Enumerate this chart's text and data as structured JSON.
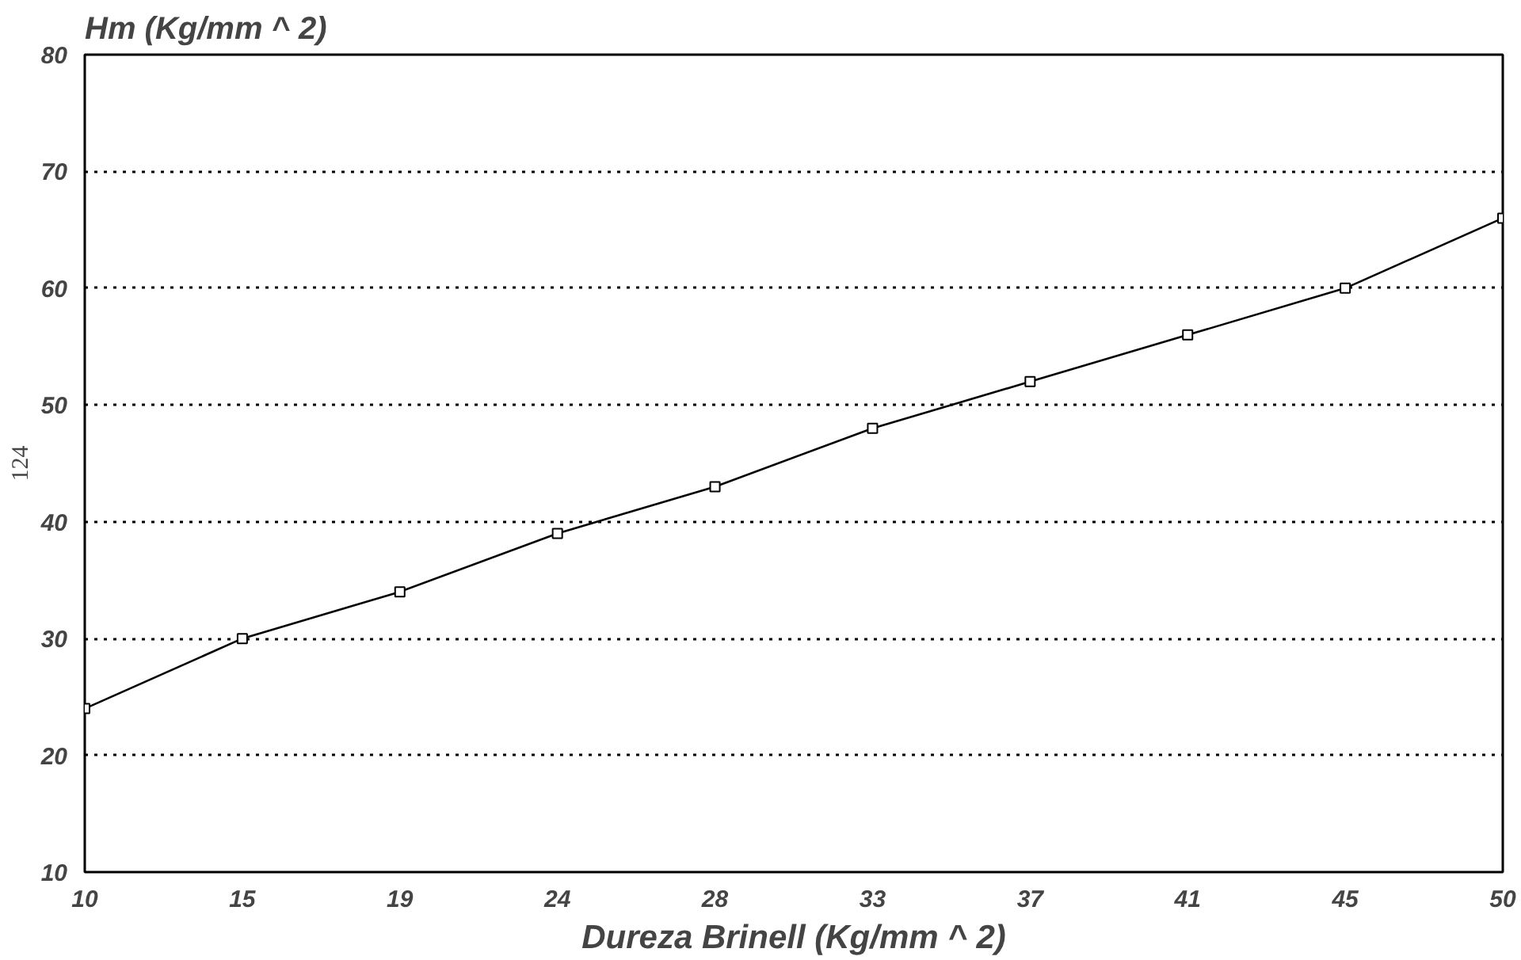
{
  "chart_data": {
    "type": "line",
    "ylabel": "Hm (Kg/mm ^ 2)",
    "xlabel": "Dureza Brinell (Kg/mm ^ 2)",
    "categories": [
      "10",
      "15",
      "19",
      "24",
      "28",
      "33",
      "37",
      "41",
      "45",
      "50"
    ],
    "series": [
      {
        "color": "#000000",
        "values": [
          24,
          30,
          34,
          39,
          43,
          48,
          52,
          56,
          60,
          66
        ]
      }
    ],
    "ylim": [
      10,
      80
    ],
    "yticks": [
      10,
      20,
      30,
      40,
      50,
      60,
      70,
      80
    ],
    "grid": "y",
    "marker": "square",
    "line_style": "solid",
    "annotations": [
      "124"
    ]
  }
}
